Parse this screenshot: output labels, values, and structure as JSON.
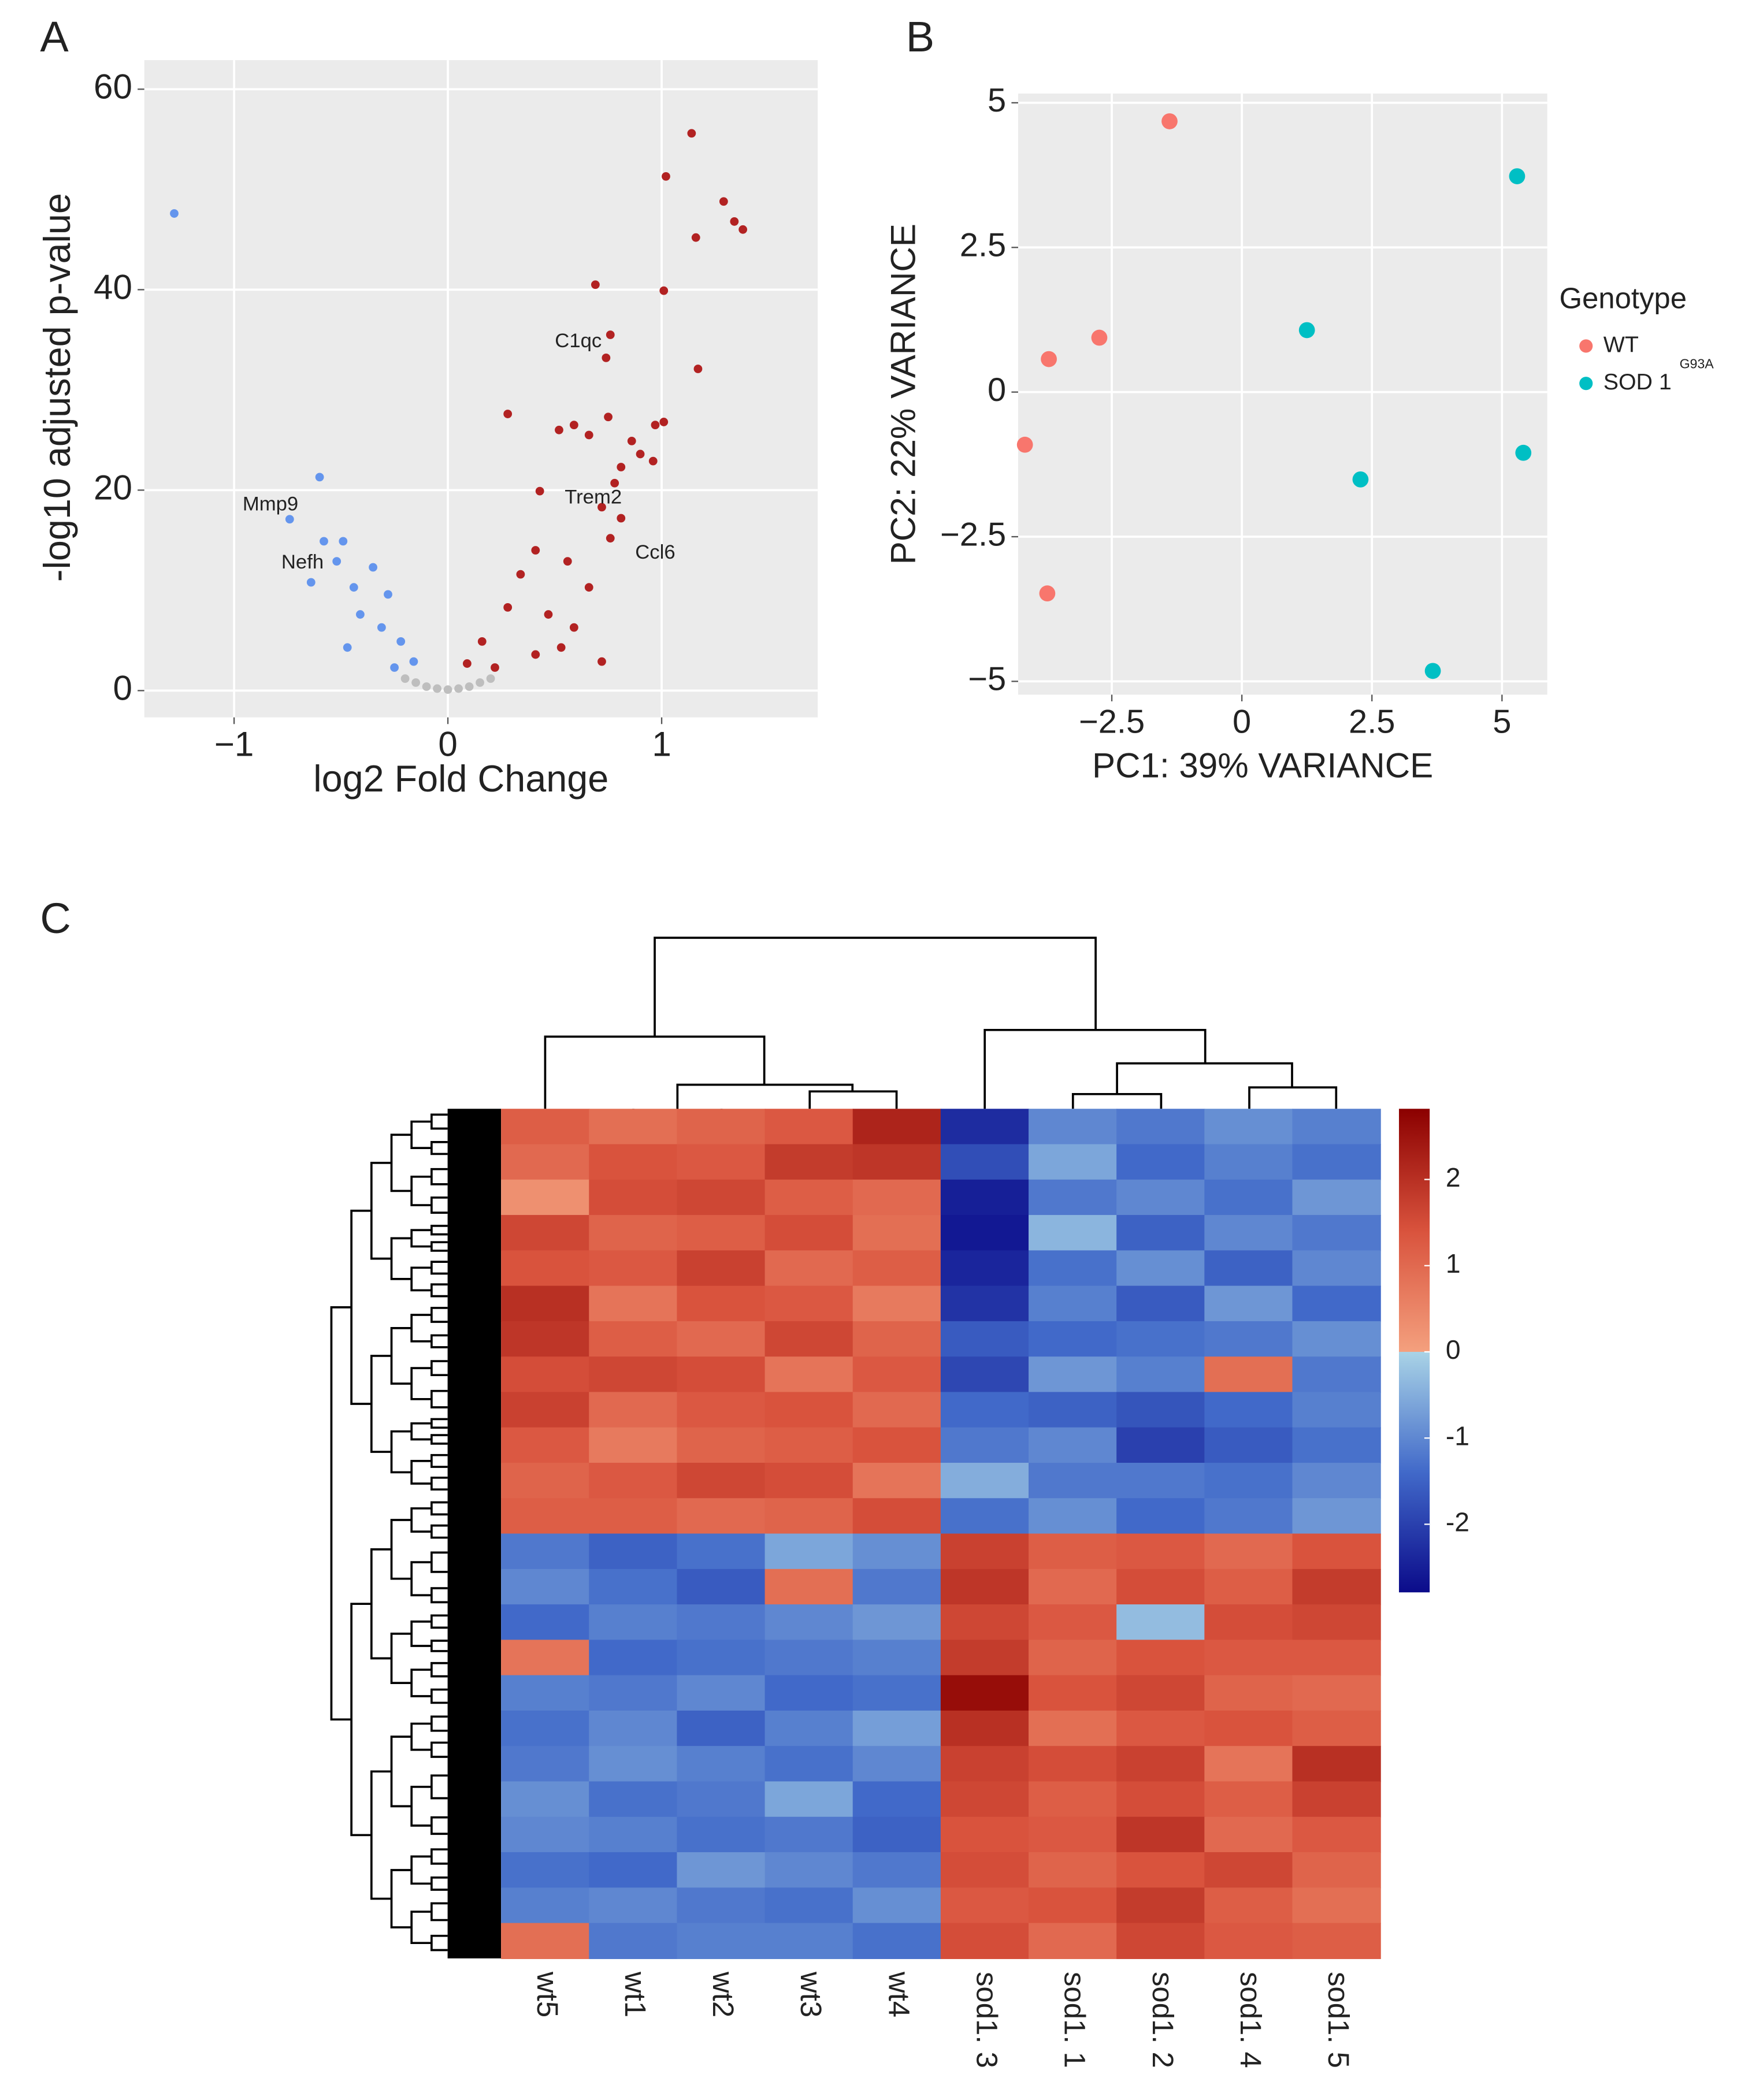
{
  "chart_data": [
    {
      "type": "scatter",
      "panel": "A",
      "xlabel": "log2 Fold Change",
      "ylabel": "-log10 adjusted p-value",
      "xlim": [
        -1.42,
        1.73
      ],
      "ylim": [
        -2.67,
        62.9
      ],
      "xticks": [
        {
          "value": -1,
          "label": "−1"
        },
        0,
        1
      ],
      "yticks": [
        0,
        20,
        40,
        60
      ],
      "grid": true,
      "background": "#ebebeb",
      "point_size": 3.2,
      "series": [
        {
          "color": "#b22222",
          "x": [
            1.14,
            1.02,
            1.29,
            1.34,
            1.38,
            1.16,
            0.69,
            1.01,
            0.76,
            0.74,
            1.17,
            0.28,
            1.01,
            0.97,
            0.75,
            0.59,
            0.52,
            0.66,
            0.86,
            0.9,
            0.96,
            0.81,
            0.78,
            0.43,
            0.72,
            0.81,
            0.76,
            0.41,
            0.56,
            0.34,
            0.66,
            0.28,
            0.47,
            0.16,
            0.59,
            0.09,
            0.41,
            0.72,
            0.22,
            0.53
          ],
          "y": [
            55.6,
            51.3,
            48.8,
            46.8,
            46,
            45.2,
            40.5,
            39.9,
            35.5,
            33.2,
            32.1,
            27.6,
            26.8,
            26.5,
            27.3,
            26.5,
            26,
            25.5,
            24.9,
            23.6,
            22.9,
            22.3,
            20.7,
            19.9,
            18.3,
            17.2,
            15.2,
            14,
            12.9,
            11.6,
            10.3,
            8.3,
            7.6,
            4.9,
            6.3,
            2.7,
            3.6,
            2.9,
            2.3,
            4.3
          ]
        },
        {
          "color": "#6495ed",
          "x": [
            -1.28,
            -0.6,
            -0.74,
            -0.58,
            -0.49,
            -0.64,
            -0.52,
            -0.35,
            -0.44,
            -0.28,
            -0.41,
            -0.31,
            -0.22,
            -0.16,
            -0.47,
            -0.25
          ],
          "y": [
            47.6,
            21.3,
            17.1,
            14.9,
            14.9,
            10.8,
            12.9,
            12.3,
            10.3,
            9.6,
            7.6,
            6.3,
            4.9,
            2.9,
            4.3,
            2.3
          ]
        },
        {
          "color": "#bebebe",
          "x": [
            -0.2,
            -0.15,
            -0.1,
            -0.05,
            0,
            0.05,
            0.1,
            0.15,
            0.2
          ],
          "y": [
            1.2,
            0.8,
            0.4,
            0.2,
            0.1,
            0.2,
            0.4,
            0.8,
            1.2
          ]
        }
      ],
      "annotations": [
        {
          "text": "C1qc",
          "x": 0.61,
          "y": 34.8
        },
        {
          "text": "Mmp9",
          "x": -0.83,
          "y": 18.5
        },
        {
          "text": "Trem2",
          "x": 0.68,
          "y": 19.2
        },
        {
          "text": "Nefh",
          "x": -0.68,
          "y": 12.7
        },
        {
          "text": "Ccl6",
          "x": 0.97,
          "y": 13.7
        }
      ]
    },
    {
      "type": "scatter",
      "panel": "B",
      "xlabel": "PC1: 39% VARIANCE",
      "ylabel": "PC2: 22% VARIANCE",
      "xlim": [
        -4.3,
        5.87
      ],
      "ylim": [
        -5.23,
        5.16
      ],
      "xticks": [
        {
          "value": -2.5,
          "label": "−2.5"
        },
        0,
        2.5,
        5
      ],
      "yticks": [
        {
          "value": -5,
          "label": "−5"
        },
        {
          "value": -2.5,
          "label": "−2.5"
        },
        0,
        2.5,
        5
      ],
      "grid": true,
      "background": "#ebebeb",
      "point_size": 6,
      "legend_title": "Genotype",
      "series": [
        {
          "name": "WT",
          "color": "#f8766d",
          "x": [
            -1.39,
            -3.71,
            -2.74,
            -4.17,
            -3.74
          ],
          "y": [
            4.68,
            0.57,
            0.94,
            -0.91,
            -3.48
          ]
        },
        {
          "name": "SOD 1",
          "name_superscript": "G93A",
          "color": "#00bfc4",
          "x": [
            5.29,
            1.25,
            2.28,
            5.41,
            3.67
          ],
          "y": [
            3.73,
            1.07,
            -1.51,
            -1.05,
            -4.82
          ]
        }
      ]
    },
    {
      "type": "heatmap",
      "panel": "C",
      "columns": [
        "wt5",
        "wt1",
        "wt2",
        "wt3",
        "wt4",
        "sod1. 3",
        "sod1. 1",
        "sod1. 2",
        "sod1. 4",
        "sod1. 5"
      ],
      "clim": [
        -2.79,
        2.82
      ],
      "colorbar_ticks": [
        -2,
        -1,
        0,
        1,
        2
      ],
      "colorscale": [
        [
          -2.79,
          "#0b0b8a"
        ],
        [
          -1.4,
          "#4169c9"
        ],
        [
          0,
          "#a9d3e6"
        ],
        [
          0,
          "#f4a07e"
        ],
        [
          1.4,
          "#d9533d"
        ],
        [
          2.82,
          "#8b0000"
        ]
      ],
      "values": [
        [
          1.2,
          0.9,
          1.1,
          1.3,
          2.2,
          -2.3,
          -1.0,
          -1.2,
          -0.9,
          -1.1
        ],
        [
          1.0,
          1.4,
          1.3,
          1.8,
          1.9,
          -1.8,
          -0.6,
          -1.4,
          -1.1,
          -1.3
        ],
        [
          0.3,
          1.5,
          1.6,
          1.2,
          1.0,
          -2.5,
          -1.2,
          -1.0,
          -1.3,
          -0.8
        ],
        [
          1.6,
          1.1,
          1.2,
          1.5,
          0.9,
          -2.6,
          -0.4,
          -1.5,
          -1.0,
          -1.2
        ],
        [
          1.4,
          1.3,
          1.7,
          1.0,
          1.2,
          -2.4,
          -1.3,
          -0.9,
          -1.5,
          -1.0
        ],
        [
          2.0,
          0.8,
          1.4,
          1.3,
          0.7,
          -2.2,
          -1.1,
          -1.6,
          -0.8,
          -1.4
        ],
        [
          1.9,
          1.2,
          1.0,
          1.6,
          1.1,
          -1.6,
          -1.4,
          -1.3,
          -1.2,
          -0.9
        ],
        [
          1.5,
          1.6,
          1.5,
          0.8,
          1.3,
          -1.9,
          -0.8,
          -1.1,
          0.9,
          -1.2
        ],
        [
          1.7,
          1.0,
          1.3,
          1.4,
          1.0,
          -1.4,
          -1.5,
          -1.7,
          -1.4,
          -1.1
        ],
        [
          1.3,
          0.7,
          1.1,
          1.2,
          1.4,
          -1.2,
          -1.0,
          -2.0,
          -1.6,
          -1.3
        ],
        [
          1.1,
          1.3,
          1.6,
          1.5,
          0.8,
          -0.5,
          -1.2,
          -1.2,
          -1.3,
          -1.0
        ],
        [
          1.2,
          1.2,
          1.0,
          1.1,
          1.5,
          -1.3,
          -0.9,
          -1.4,
          -1.2,
          -0.8
        ],
        [
          -1.2,
          -1.5,
          -1.3,
          -0.6,
          -0.9,
          1.7,
          1.2,
          1.3,
          1.0,
          1.4
        ],
        [
          -1.0,
          -1.3,
          -1.6,
          0.9,
          -1.2,
          1.9,
          1.0,
          1.5,
          1.2,
          1.8
        ],
        [
          -1.4,
          -1.1,
          -1.2,
          -1.0,
          -0.8,
          1.6,
          1.3,
          -0.3,
          1.5,
          1.6
        ],
        [
          0.8,
          -1.4,
          -1.3,
          -1.2,
          -1.1,
          1.8,
          1.1,
          1.4,
          1.3,
          1.3
        ],
        [
          -1.1,
          -1.2,
          -1.0,
          -1.4,
          -1.3,
          2.6,
          1.4,
          1.6,
          1.1,
          1.0
        ],
        [
          -1.3,
          -1.0,
          -1.5,
          -1.1,
          -0.7,
          2.0,
          0.9,
          1.3,
          1.4,
          1.2
        ],
        [
          -1.2,
          -0.9,
          -1.1,
          -1.3,
          -1.0,
          1.7,
          1.5,
          1.7,
          0.8,
          2.0
        ],
        [
          -0.9,
          -1.3,
          -1.2,
          -0.6,
          -1.4,
          1.6,
          1.2,
          1.5,
          1.2,
          1.7
        ],
        [
          -1.0,
          -1.1,
          -1.3,
          -1.2,
          -1.5,
          1.4,
          1.3,
          1.9,
          1.0,
          1.3
        ],
        [
          -1.3,
          -1.4,
          -0.8,
          -1.0,
          -1.2,
          1.5,
          1.1,
          1.4,
          1.6,
          1.1
        ],
        [
          -1.1,
          -1.0,
          -1.2,
          -1.3,
          -0.9,
          1.3,
          1.4,
          1.8,
          1.2,
          0.9
        ],
        [
          0.9,
          -1.2,
          -1.1,
          -1.1,
          -1.3,
          1.5,
          1.0,
          1.6,
          1.3,
          1.2
        ]
      ]
    }
  ]
}
